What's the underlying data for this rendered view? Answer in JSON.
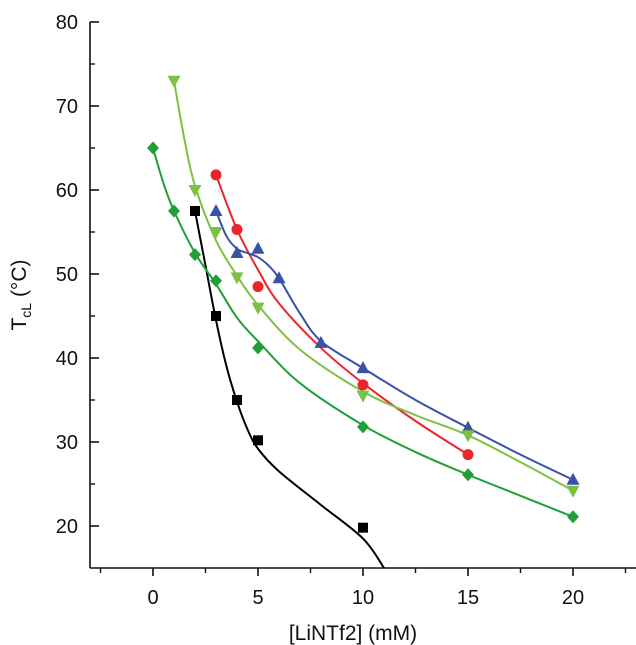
{
  "chart_data": {
    "type": "scatter",
    "xlabel": "[LiNTf2] (mM)",
    "ylabel": {
      "main": "T",
      "subscript": "cL",
      "unit": " (°C)"
    },
    "xlim": [
      -3,
      23
    ],
    "ylim": [
      15,
      80
    ],
    "x_ticks": [
      0,
      5,
      10,
      15,
      20
    ],
    "x_tick_labels": [
      "0",
      "5",
      "10",
      "15",
      "20"
    ],
    "y_ticks": [
      20,
      30,
      40,
      50,
      60,
      70,
      80
    ],
    "y_tick_labels": [
      "20",
      "30",
      "40",
      "50",
      "60",
      "70",
      "80"
    ],
    "grid": false,
    "legend": "none",
    "series": [
      {
        "marker": "square",
        "color": "#000000",
        "x": [
          2,
          3,
          4,
          5,
          10
        ],
        "y": [
          57.5,
          45,
          35,
          30.2,
          19.8
        ],
        "curve": [
          [
            2,
            57.5
          ],
          [
            2.5,
            51
          ],
          [
            3,
            44.5
          ],
          [
            3.5,
            39
          ],
          [
            4,
            34.8
          ],
          [
            4.5,
            31.5
          ],
          [
            5,
            29.2
          ],
          [
            6,
            26.5
          ],
          [
            8,
            22.5
          ],
          [
            10,
            18.5
          ],
          [
            11,
            15
          ]
        ]
      },
      {
        "marker": "circle",
        "color": "#e8262b",
        "x": [
          3,
          4,
          5,
          10,
          15
        ],
        "y": [
          61.8,
          55.3,
          48.5,
          36.8,
          28.5
        ],
        "curve": [
          [
            3,
            61.8
          ],
          [
            4,
            55.3
          ],
          [
            5,
            50.5
          ],
          [
            6,
            46.5
          ],
          [
            8,
            41.2
          ],
          [
            10,
            37
          ],
          [
            12.5,
            32.5
          ],
          [
            15,
            28.5
          ]
        ]
      },
      {
        "marker": "triangle-up",
        "color": "#3a52a6",
        "x": [
          3,
          4,
          5,
          6,
          8,
          10,
          15,
          20
        ],
        "y": [
          57.5,
          52.5,
          53,
          49.5,
          41.8,
          38.8,
          31.7,
          25.5
        ],
        "curve": [
          [
            3,
            57.5
          ],
          [
            3.5,
            54.5
          ],
          [
            4,
            53
          ],
          [
            4.5,
            52.5
          ],
          [
            5,
            52
          ],
          [
            5.5,
            51
          ],
          [
            6,
            49.5
          ],
          [
            7,
            45.3
          ],
          [
            8,
            42
          ],
          [
            10,
            38.8
          ],
          [
            12.5,
            35
          ],
          [
            15,
            31.7
          ],
          [
            17.5,
            28.5
          ],
          [
            20,
            25.5
          ]
        ]
      },
      {
        "marker": "triangle-down",
        "color": "#7bc243",
        "x": [
          1,
          2,
          3,
          4,
          5,
          10,
          15,
          20
        ],
        "y": [
          73,
          60,
          55,
          49.6,
          46,
          35.5,
          30.8,
          24.2
        ],
        "curve": [
          [
            1,
            73
          ],
          [
            1.5,
            66
          ],
          [
            2,
            60.5
          ],
          [
            3,
            54
          ],
          [
            4,
            49.8
          ],
          [
            5,
            46.3
          ],
          [
            7,
            41
          ],
          [
            10,
            36
          ],
          [
            12.5,
            33.2
          ],
          [
            15,
            30.8
          ],
          [
            17.5,
            27.6
          ],
          [
            20,
            24.2
          ]
        ]
      },
      {
        "marker": "diamond",
        "color": "#1f9e3a",
        "x": [
          0,
          1,
          2,
          3,
          5,
          10,
          15,
          20
        ],
        "y": [
          65,
          57.5,
          52.3,
          49.2,
          41.2,
          31.8,
          26.1,
          21.1
        ],
        "curve": [
          [
            0,
            65
          ],
          [
            0.5,
            60.8
          ],
          [
            1,
            57.5
          ],
          [
            2,
            52.5
          ],
          [
            3,
            48.8
          ],
          [
            4,
            44.8
          ],
          [
            5,
            42
          ],
          [
            7,
            37
          ],
          [
            10,
            32
          ],
          [
            12.5,
            28.8
          ],
          [
            15,
            26.1
          ],
          [
            17.5,
            23.6
          ],
          [
            20,
            21.1
          ]
        ]
      }
    ]
  }
}
